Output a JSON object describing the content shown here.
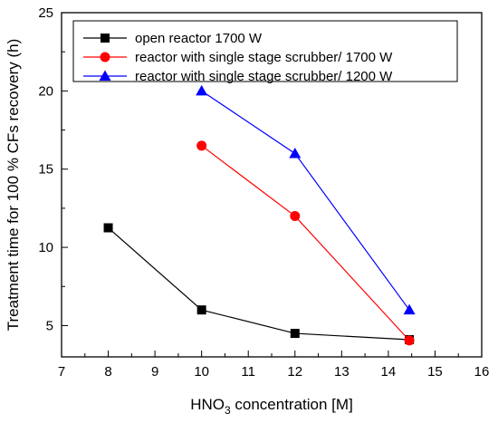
{
  "chart_data": {
    "type": "line",
    "xlabel": {
      "prefix": "HNO",
      "subscript": "3",
      "suffix": " concentration [M]"
    },
    "ylabel": "Treatment time for 100 % CFs recovery (h)",
    "xlim": [
      7,
      16
    ],
    "ylim": [
      3,
      25
    ],
    "xticks": [
      7,
      8,
      9,
      10,
      11,
      12,
      13,
      14,
      15,
      16
    ],
    "yticks": [
      5,
      10,
      15,
      20,
      25
    ],
    "grid": false,
    "legend_position": "top-right",
    "series": [
      {
        "name": "open reactor 1700 W",
        "color": "#000000",
        "marker": "square",
        "x": [
          8,
          10,
          12,
          14.45
        ],
        "y": [
          11.25,
          6.0,
          4.5,
          4.1
        ]
      },
      {
        "name": "reactor with single stage scrubber/ 1700 W",
        "color": "#ff0000",
        "marker": "circle",
        "x": [
          10,
          12,
          14.45
        ],
        "y": [
          16.5,
          12.0,
          4.05
        ]
      },
      {
        "name": "reactor with single stage scrubber/ 1200 W",
        "color": "#0000ff",
        "marker": "triangle",
        "x": [
          10,
          12,
          14.45
        ],
        "y": [
          20.0,
          16.0,
          6.0
        ]
      }
    ]
  }
}
